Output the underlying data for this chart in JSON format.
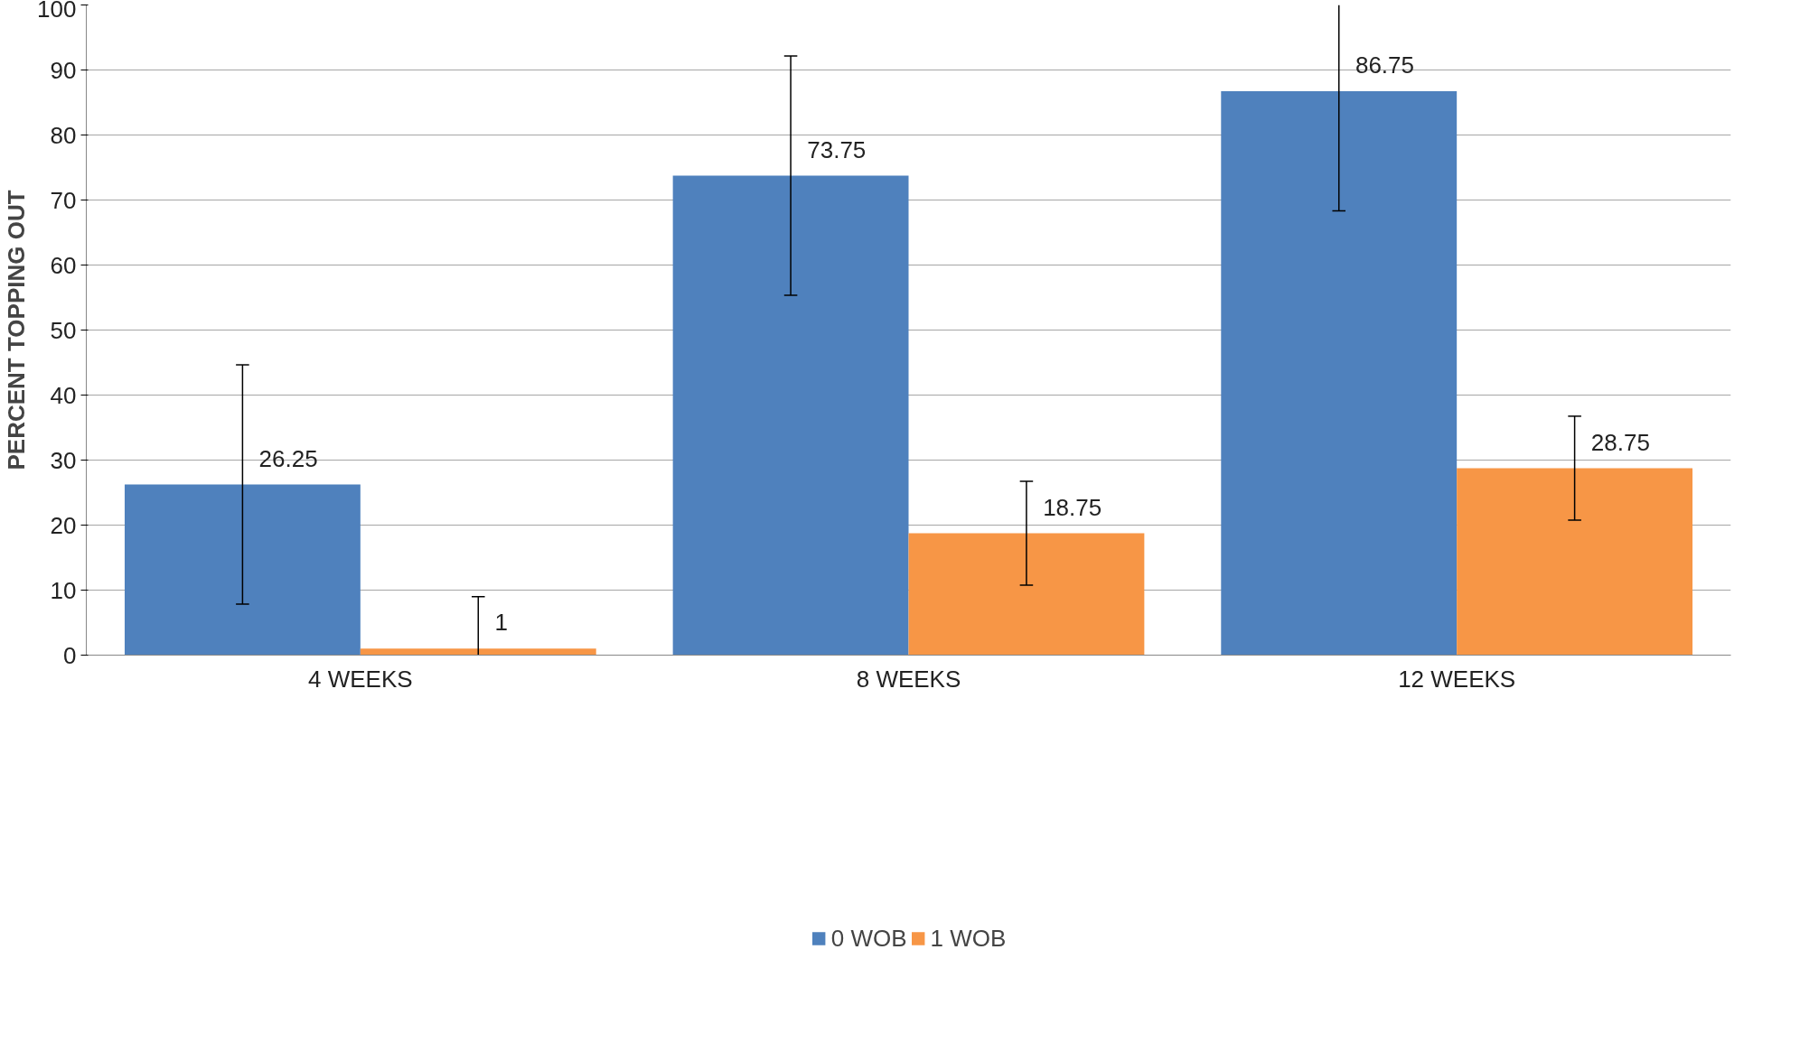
{
  "chart_data": {
    "type": "bar",
    "ylabel": "PERCENT TOPPING OUT",
    "categories": [
      "4 WEEKS",
      "8 WEEKS",
      "12 WEEKS"
    ],
    "series": [
      {
        "name": "0 WOB",
        "color": "#4f81bd",
        "values": [
          26.25,
          73.75,
          86.75
        ],
        "errors": [
          18.4,
          18.4,
          [
            68.35,
            100
          ]
        ]
      },
      {
        "name": "1 WOB",
        "color": "#f79646",
        "values": [
          1,
          18.75,
          28.75
        ],
        "errors": [
          [
            0,
            9
          ],
          8,
          8
        ]
      }
    ],
    "ylim": [
      0,
      100
    ],
    "yticks": [
      0,
      10,
      20,
      30,
      40,
      50,
      60,
      70,
      80,
      90,
      100
    ],
    "grid": "y",
    "legend": "bottom",
    "data_labels": true
  }
}
